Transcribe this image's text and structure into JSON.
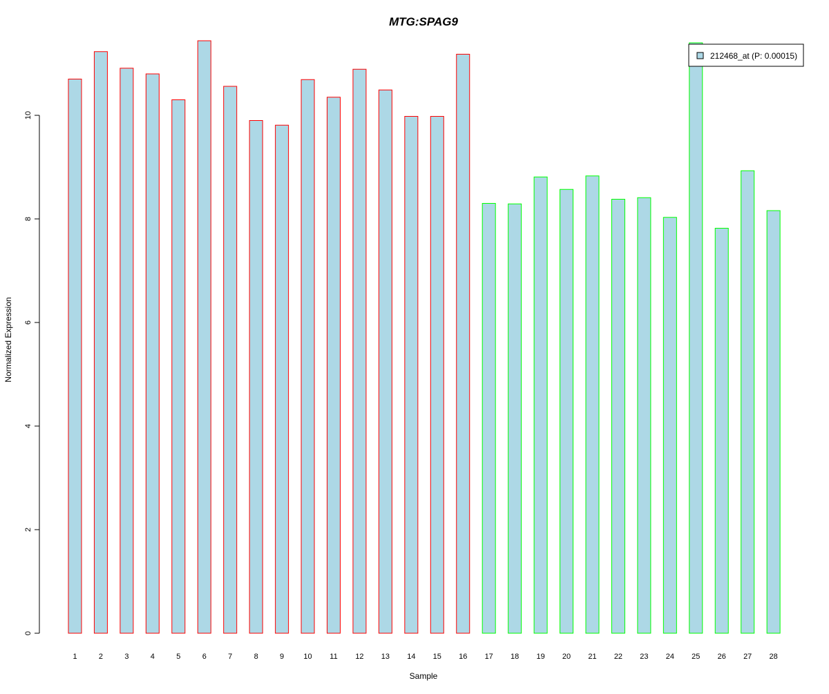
{
  "chart_data": {
    "type": "bar",
    "title": "MTG:SPAG9",
    "xlabel": "Sample",
    "ylabel": "Normalized Expression",
    "ylim": [
      0,
      11.5
    ],
    "yticks": [
      0,
      2,
      4,
      6,
      8,
      10
    ],
    "grid": false,
    "legend": {
      "position": "top-right",
      "entries": [
        {
          "label": "212468_at (P: 0.00015)",
          "fill": "#add8e6"
        }
      ]
    },
    "categories": [
      "1",
      "2",
      "3",
      "4",
      "5",
      "6",
      "7",
      "8",
      "9",
      "10",
      "11",
      "12",
      "13",
      "14",
      "15",
      "16",
      "17",
      "18",
      "19",
      "20",
      "21",
      "22",
      "23",
      "24",
      "25",
      "26",
      "27",
      "28"
    ],
    "values": [
      10.7,
      11.23,
      10.91,
      10.8,
      10.3,
      11.44,
      10.56,
      9.9,
      9.81,
      10.69,
      10.35,
      10.89,
      10.49,
      9.98,
      9.98,
      11.18,
      8.3,
      8.29,
      8.81,
      8.57,
      8.83,
      8.38,
      8.41,
      8.03,
      11.4,
      7.82,
      8.93,
      8.16
    ],
    "groups": [
      "red",
      "red",
      "red",
      "red",
      "red",
      "red",
      "red",
      "red",
      "red",
      "red",
      "red",
      "red",
      "red",
      "red",
      "red",
      "red",
      "green",
      "green",
      "green",
      "green",
      "green",
      "green",
      "green",
      "green",
      "green",
      "green",
      "green",
      "green"
    ],
    "colors": {
      "bar_fill": "#add8e6",
      "red": "#ff0000",
      "green": "#00ff00",
      "title": "#0000cd",
      "axis": "#000000"
    }
  }
}
